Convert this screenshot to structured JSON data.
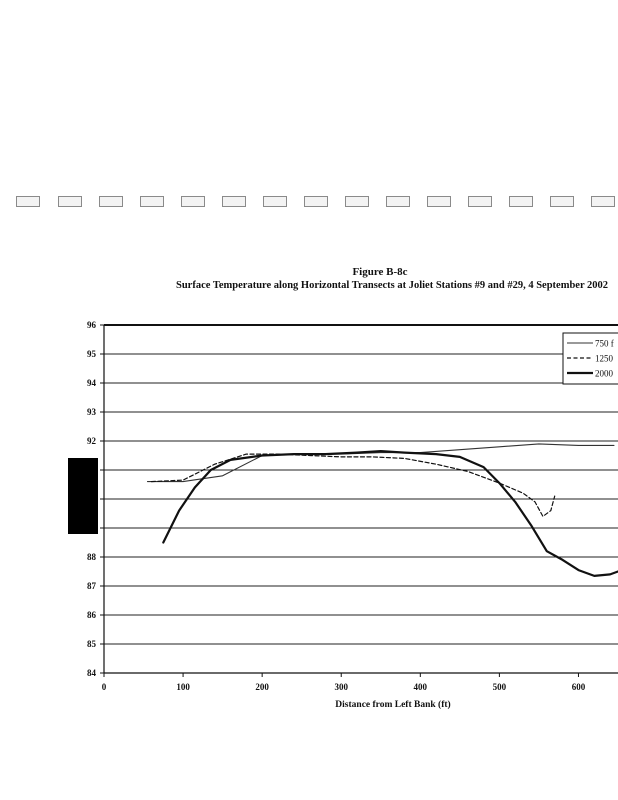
{
  "page": {
    "figure_label": "Figure B-8c",
    "figure_caption": "Surface Temperature along Horizontal Transects at Joliet Stations #9 and #29, 4 September 2002"
  },
  "chart_data": {
    "type": "line",
    "title": "Figure B-8c",
    "subtitle": "Surface Temperature along Horizontal Transects at Joliet Stations #9 and #29, 4 September 2002",
    "xlabel": "Distance from Left Bank (ft)",
    "ylabel": "",
    "xlim": [
      0,
      650
    ],
    "ylim": [
      84,
      96
    ],
    "xticks": [
      0,
      100,
      200,
      300,
      400,
      500,
      600
    ],
    "yticks": [
      84,
      85,
      86,
      87,
      88,
      89,
      90,
      91,
      92,
      93,
      94,
      95,
      96
    ],
    "ytick_labels": [
      "84",
      "85",
      "86",
      "87",
      "88",
      "",
      "",
      "",
      "92",
      "93",
      "94",
      "95",
      "96"
    ],
    "grid": true,
    "legend_position": "top-right",
    "series": [
      {
        "name": "750 f",
        "style": "solid-thin",
        "x": [
          55,
          100,
          150,
          200,
          250,
          300,
          350,
          400,
          450,
          500,
          550,
          600,
          645
        ],
        "y": [
          90.6,
          90.6,
          90.8,
          91.5,
          91.55,
          91.55,
          91.6,
          91.6,
          91.7,
          91.8,
          91.9,
          91.85,
          91.85
        ]
      },
      {
        "name": "1250",
        "style": "dashed",
        "x": [
          60,
          100,
          140,
          180,
          220,
          260,
          300,
          340,
          380,
          420,
          460,
          500,
          530,
          545,
          555,
          565,
          570
        ],
        "y": [
          90.6,
          90.65,
          91.2,
          91.55,
          91.55,
          91.5,
          91.45,
          91.45,
          91.4,
          91.2,
          90.95,
          90.55,
          90.2,
          89.9,
          89.4,
          89.6,
          90.1
        ]
      },
      {
        "name": "2000",
        "style": "solid-thick",
        "x": [
          75,
          95,
          115,
          135,
          160,
          200,
          240,
          280,
          320,
          350,
          380,
          420,
          450,
          480,
          500,
          520,
          540,
          560,
          580,
          600,
          620,
          640,
          650
        ],
        "y": [
          88.5,
          89.6,
          90.4,
          91.0,
          91.35,
          91.5,
          91.55,
          91.55,
          91.6,
          91.65,
          91.6,
          91.55,
          91.45,
          91.1,
          90.55,
          89.9,
          89.1,
          88.2,
          87.9,
          87.55,
          87.35,
          87.4,
          87.5
        ]
      }
    ]
  }
}
